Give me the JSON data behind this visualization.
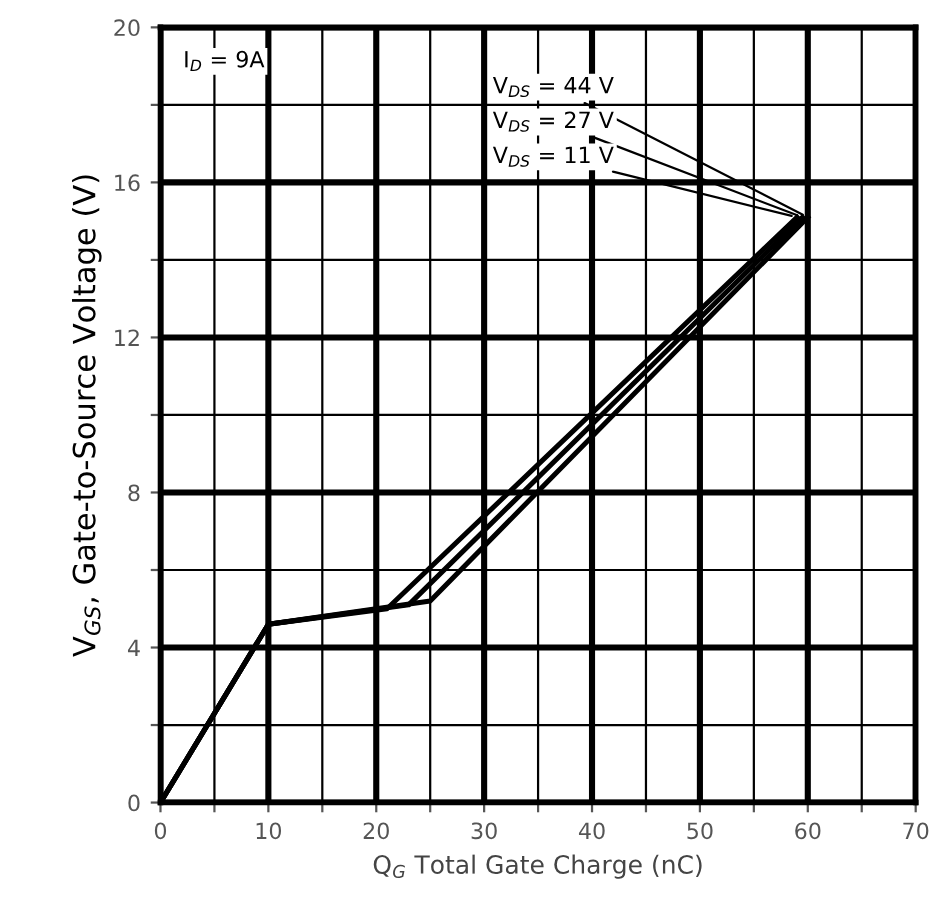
{
  "chart_data": {
    "type": "line",
    "xlabel": "Q$_{G}$ Total Gate Charge (nC)",
    "ylabel": "V$_{GS}$, Gate-to-Source Voltage (V)",
    "annotations": [
      "I$_{D}$ = 9A"
    ],
    "series": [
      {
        "name": "V$_{DS}$ = 44 V",
        "color": "#000000",
        "x": [
          0,
          10,
          25,
          60
        ],
        "values": [
          0,
          4.6,
          5.2,
          15.1
        ]
      },
      {
        "name": "V$_{DS}$ = 27 V",
        "color": "#000000",
        "x": [
          0,
          10,
          23,
          59.5
        ],
        "values": [
          0,
          4.6,
          5.1,
          15.1
        ]
      },
      {
        "name": "V$_{DS}$ = 11 V",
        "color": "#000000",
        "x": [
          0,
          10,
          21,
          59
        ],
        "values": [
          0,
          4.6,
          5.0,
          15.1
        ]
      }
    ],
    "xlim": [
      0,
      70
    ],
    "ylim": [
      0,
      20
    ],
    "xticks": [
      0,
      {
        "value": 5,
        "label": null
      },
      10,
      {
        "value": 15,
        "label": null
      },
      20,
      {
        "value": 25,
        "label": null
      },
      30,
      {
        "value": 35,
        "label": null
      },
      40,
      {
        "value": 45,
        "label": null
      },
      50,
      {
        "value": 55,
        "label": null
      },
      60,
      {
        "value": 65,
        "label": null
      },
      70
    ],
    "yticks": [
      0,
      {
        "value": 2,
        "label": null
      },
      4,
      {
        "value": 6,
        "label": null
      },
      8,
      {
        "value": 10,
        "label": null
      },
      12,
      {
        "value": 14,
        "label": null
      },
      16,
      {
        "value": 18,
        "label": null
      },
      20
    ],
    "grid": true,
    "legend": false,
    "marker": "none",
    "line_style": "solid"
  }
}
